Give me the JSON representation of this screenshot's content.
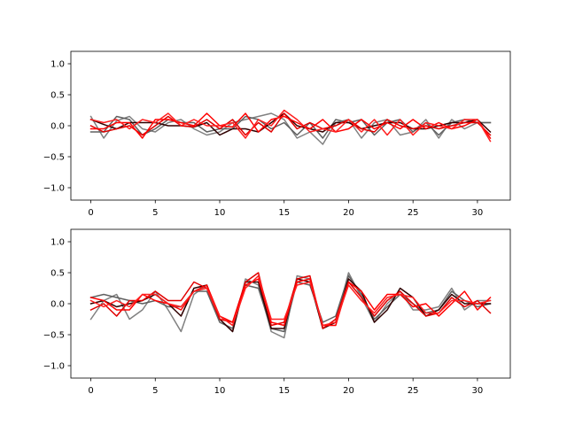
{
  "chart_data": [
    {
      "type": "line",
      "title": "",
      "xlabel": "",
      "ylabel": "",
      "xlim": [
        -1.55,
        32.55
      ],
      "ylim": [
        -1.2,
        1.2
      ],
      "xticks": [
        0,
        5,
        10,
        15,
        20,
        25,
        30
      ],
      "xtick_labels": [
        "0",
        "5",
        "10",
        "15",
        "20",
        "25",
        "30"
      ],
      "yticks": [
        -1.0,
        -0.5,
        0.0,
        0.5,
        1.0
      ],
      "ytick_labels": [
        "−1.0",
        "−0.5",
        "0.0",
        "0.5",
        "1.0"
      ],
      "grid": false,
      "x": [
        0,
        1,
        2,
        3,
        4,
        5,
        6,
        7,
        8,
        9,
        10,
        11,
        12,
        13,
        14,
        15,
        16,
        17,
        18,
        19,
        20,
        21,
        22,
        23,
        24,
        25,
        26,
        27,
        28,
        29,
        30,
        31
      ],
      "series": [
        {
          "color": "#808080",
          "values": [
            0.15,
            -0.2,
            0.08,
            0.15,
            -0.05,
            -0.1,
            0.05,
            0.1,
            -0.05,
            -0.15,
            -0.1,
            0.05,
            0.1,
            0.15,
            0.2,
            0.1,
            -0.2,
            -0.1,
            -0.3,
            0.05,
            0.1,
            -0.2,
            0.05,
            0.1,
            -0.15,
            -0.1,
            0.1,
            -0.2,
            0.1,
            -0.05,
            0.05,
            0.05
          ]
        },
        {
          "color": "#606060",
          "values": [
            -0.1,
            -0.1,
            0.15,
            0.1,
            -0.15,
            -0.05,
            0.1,
            0.05,
            0.05,
            -0.1,
            -0.05,
            -0.05,
            0.15,
            0.1,
            -0.05,
            0.05,
            -0.15,
            0.05,
            -0.2,
            0.1,
            0.05,
            0.1,
            -0.15,
            0.05,
            0.1,
            -0.1,
            0.05,
            -0.15,
            0.05,
            0.1,
            0.05,
            0.05
          ]
        },
        {
          "color": "#300000",
          "values": [
            0.1,
            0.02,
            -0.05,
            0.05,
            0.05,
            0.05,
            0.0,
            0.0,
            -0.02,
            0.05,
            -0.15,
            -0.05,
            -0.05,
            -0.1,
            0.05,
            0.2,
            0.0,
            -0.05,
            -0.1,
            0.05,
            0.05,
            -0.05,
            0.0,
            0.05,
            0.05,
            -0.05,
            -0.05,
            0.0,
            0.05,
            0.05,
            0.1,
            -0.1
          ]
        },
        {
          "color": "#e00000",
          "values": [
            0.0,
            -0.1,
            -0.05,
            0.0,
            -0.15,
            0.0,
            0.15,
            0.0,
            -0.02,
            0.1,
            -0.05,
            0.1,
            -0.15,
            0.05,
            -0.1,
            0.2,
            -0.05,
            0.05,
            -0.05,
            0.0,
            0.1,
            -0.05,
            -0.1,
            0.1,
            0.0,
            -0.05,
            0.0,
            -0.05,
            0.0,
            0.05,
            0.05,
            -0.15
          ]
        },
        {
          "color": "#ff0000",
          "values": [
            -0.05,
            -0.05,
            0.05,
            0.05,
            -0.2,
            0.1,
            0.1,
            0.05,
            0.0,
            0.2,
            0.0,
            -0.02,
            0.2,
            -0.1,
            0.1,
            0.15,
            0.05,
            -0.05,
            0.1,
            -0.1,
            -0.05,
            0.1,
            -0.05,
            0.05,
            -0.05,
            0.1,
            -0.05,
            0.05,
            -0.05,
            0.0,
            0.1,
            -0.2
          ]
        },
        {
          "color": "#ff2020",
          "values": [
            0.1,
            0.05,
            0.1,
            -0.05,
            0.1,
            0.05,
            0.2,
            0.0,
            0.1,
            0.0,
            0.0,
            0.05,
            -0.2,
            0.1,
            0.0,
            0.25,
            0.1,
            -0.1,
            -0.05,
            -0.1,
            0.1,
            -0.1,
            0.1,
            -0.15,
            0.1,
            -0.15,
            0.05,
            0.0,
            -0.05,
            0.1,
            0.1,
            -0.25
          ]
        }
      ]
    },
    {
      "type": "line",
      "title": "",
      "xlabel": "",
      "ylabel": "",
      "xlim": [
        -1.55,
        32.55
      ],
      "ylim": [
        -1.2,
        1.2
      ],
      "xticks": [
        0,
        5,
        10,
        15,
        20,
        25,
        30
      ],
      "xtick_labels": [
        "0",
        "5",
        "10",
        "15",
        "20",
        "25",
        "30"
      ],
      "yticks": [
        -1.0,
        -0.5,
        0.0,
        0.5,
        1.0
      ],
      "ytick_labels": [
        "−1.0",
        "−0.5",
        "0.0",
        "0.5",
        "1.0"
      ],
      "grid": false,
      "x": [
        0,
        1,
        2,
        3,
        4,
        5,
        6,
        7,
        8,
        9,
        10,
        11,
        12,
        13,
        14,
        15,
        16,
        17,
        18,
        19,
        20,
        21,
        22,
        23,
        24,
        25,
        26,
        27,
        28,
        29,
        30,
        31
      ],
      "series": [
        {
          "color": "#808080",
          "values": [
            -0.25,
            0.05,
            0.15,
            -0.25,
            -0.1,
            0.2,
            -0.1,
            -0.45,
            0.15,
            0.3,
            -0.25,
            -0.45,
            0.4,
            0.3,
            -0.45,
            -0.55,
            0.45,
            0.4,
            -0.4,
            -0.3,
            0.5,
            0.1,
            -0.3,
            0.0,
            0.2,
            -0.1,
            -0.1,
            -0.05,
            0.25,
            -0.1,
            0.05,
            0.05
          ]
        },
        {
          "color": "#606060",
          "values": [
            0.1,
            0.15,
            0.1,
            0.05,
            0.0,
            0.05,
            -0.05,
            -0.05,
            0.2,
            0.2,
            -0.3,
            -0.4,
            0.3,
            0.25,
            -0.4,
            -0.45,
            0.35,
            0.3,
            -0.3,
            -0.2,
            0.45,
            0.15,
            -0.25,
            -0.05,
            0.15,
            0.0,
            -0.15,
            -0.1,
            0.2,
            0.05,
            -0.05,
            0.0
          ]
        },
        {
          "color": "#300000",
          "values": [
            0.0,
            0.05,
            -0.05,
            0.0,
            0.05,
            0.15,
            0.0,
            -0.2,
            0.25,
            0.3,
            -0.25,
            -0.45,
            0.35,
            0.35,
            -0.4,
            -0.4,
            0.4,
            0.35,
            -0.4,
            -0.3,
            0.4,
            0.2,
            -0.3,
            -0.1,
            0.25,
            0.1,
            -0.2,
            -0.1,
            0.15,
            0.0,
            0.0,
            0.0
          ]
        },
        {
          "color": "#e00000",
          "values": [
            -0.1,
            0.0,
            -0.2,
            0.05,
            0.05,
            0.2,
            0.05,
            0.05,
            0.35,
            0.25,
            -0.25,
            -0.3,
            0.35,
            0.5,
            -0.35,
            -0.3,
            0.4,
            0.45,
            -0.4,
            -0.25,
            0.35,
            0.1,
            -0.2,
            0.05,
            0.2,
            0.0,
            -0.2,
            -0.15,
            0.1,
            -0.05,
            0.05,
            -0.15
          ]
        },
        {
          "color": "#ff0000",
          "values": [
            0.1,
            0.05,
            -0.1,
            -0.1,
            0.15,
            0.05,
            0.0,
            -0.1,
            0.2,
            0.3,
            -0.2,
            -0.3,
            0.3,
            0.4,
            -0.3,
            -0.35,
            0.35,
            0.4,
            -0.35,
            -0.35,
            0.35,
            0.2,
            -0.1,
            0.15,
            0.15,
            -0.05,
            0.0,
            -0.2,
            0.0,
            0.2,
            -0.1,
            0.1
          ]
        },
        {
          "color": "#ff2020",
          "values": [
            0.05,
            -0.05,
            0.05,
            -0.05,
            0.15,
            0.15,
            0.0,
            -0.05,
            0.2,
            0.25,
            -0.2,
            -0.35,
            0.25,
            0.45,
            -0.25,
            -0.25,
            0.3,
            0.35,
            -0.35,
            -0.3,
            0.3,
            0.05,
            -0.15,
            0.1,
            0.15,
            0.1,
            -0.15,
            -0.15,
            0.05,
            0.05,
            0.0,
            0.05
          ]
        }
      ]
    }
  ]
}
